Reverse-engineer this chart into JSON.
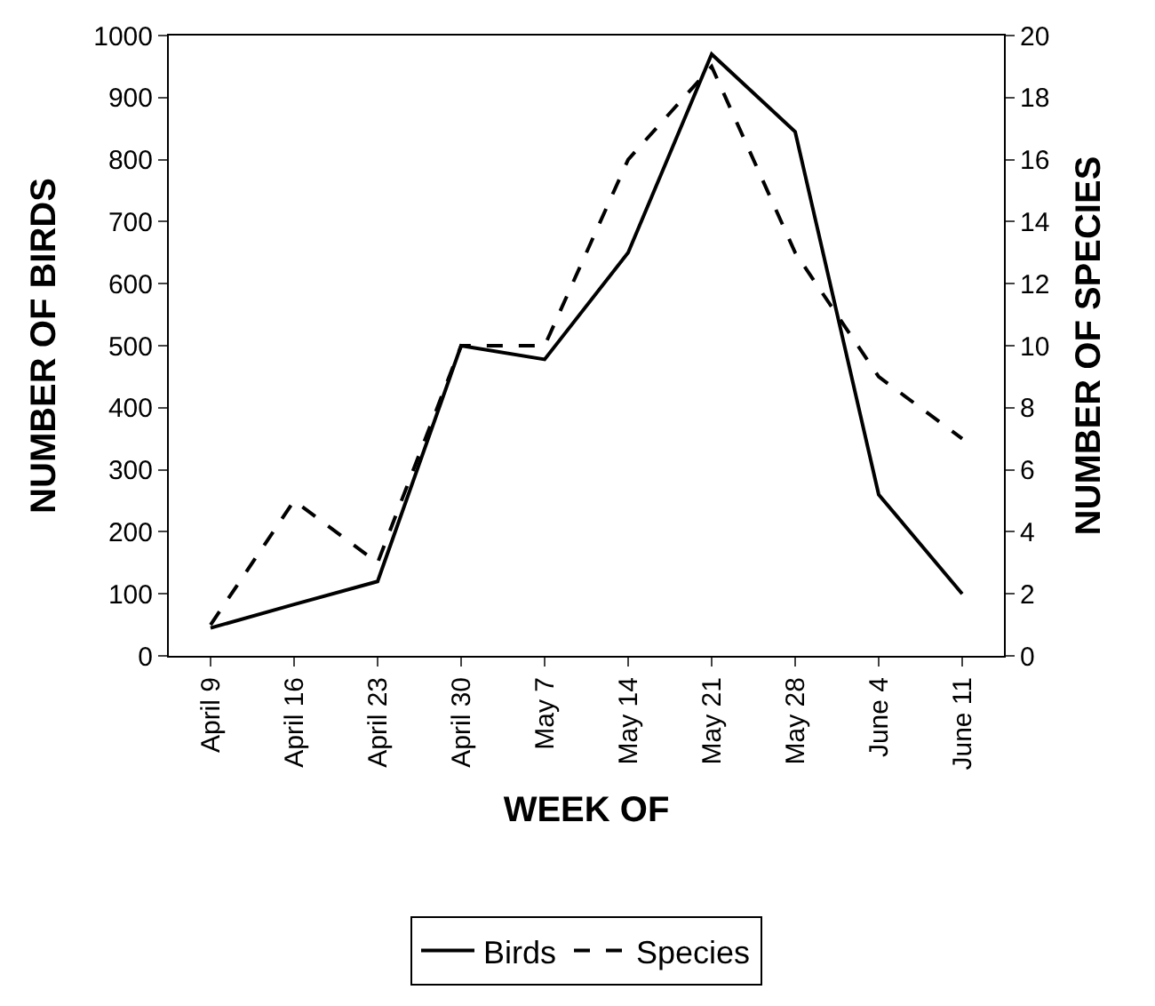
{
  "chart_data": {
    "type": "line",
    "xlabel": "WEEK OF",
    "ylabel": "NUMBER OF BIRDS",
    "y2label": "NUMBER OF SPECIES",
    "categories": [
      "April 9",
      "April 16",
      "April 23",
      "April 30",
      "May 7",
      "May 14",
      "May 21",
      "May 28",
      "June 4",
      "June 11"
    ],
    "series": [
      {
        "name": "Birds",
        "color": "#000000",
        "line_style": "solid",
        "values": [
          45,
          83,
          120,
          500,
          478,
          650,
          970,
          845,
          260,
          100
        ]
      },
      {
        "name": "Species",
        "color": "#000000",
        "line_style": "dashed",
        "axis": "y2",
        "values": [
          1,
          5,
          3,
          10,
          10,
          16,
          19,
          13,
          9,
          7
        ]
      }
    ],
    "ylim": [
      0,
      1000
    ],
    "yticks": [
      0,
      100,
      200,
      300,
      400,
      500,
      600,
      700,
      800,
      900,
      1000
    ],
    "y2lim": [
      0,
      20
    ],
    "y2ticks": [
      0,
      2,
      4,
      6,
      8,
      10,
      12,
      14,
      16,
      18,
      20
    ],
    "legend": "bottom",
    "marker": "none"
  }
}
